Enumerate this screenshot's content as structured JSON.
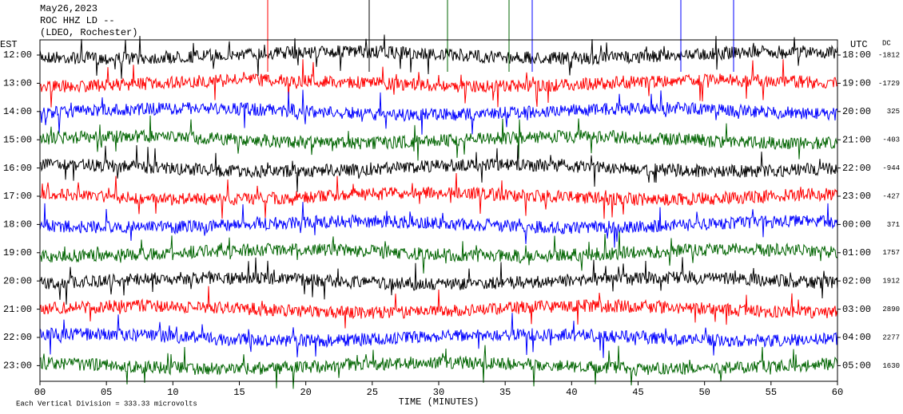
{
  "header": [
    "May26,2023",
    "ROC HHZ LD --",
    "(LDEO, Rochester)"
  ],
  "left_axis": {
    "label": "EST",
    "ticks": [
      "12:00",
      "13:00",
      "14:00",
      "15:00",
      "16:00",
      "17:00",
      "18:00",
      "19:00",
      "20:00",
      "21:00",
      "22:00",
      "23:00"
    ]
  },
  "right_axis": {
    "label": "UTC",
    "ticks": [
      "18:00",
      "19:00",
      "20:00",
      "21:00",
      "22:00",
      "23:00",
      "00:00",
      "01:00",
      "02:00",
      "03:00",
      "04:00",
      "05:00"
    ]
  },
  "dc_label": "DC",
  "dc_values": [
    -1812,
    -1729,
    325,
    -403,
    -944,
    -427,
    371,
    1757,
    1912,
    2890,
    2277,
    1630
  ],
  "x_axis": {
    "label": "TIME (MINUTES)",
    "xlim": [
      0,
      60
    ],
    "ticks": [
      {
        "value": 0,
        "label": "00"
      },
      {
        "value": 5,
        "label": "05"
      },
      10,
      15,
      20,
      25,
      30,
      35,
      40,
      45,
      50,
      55,
      60
    ]
  },
  "footer": "Each Vertical Division =  333.33 microvolts"
}
